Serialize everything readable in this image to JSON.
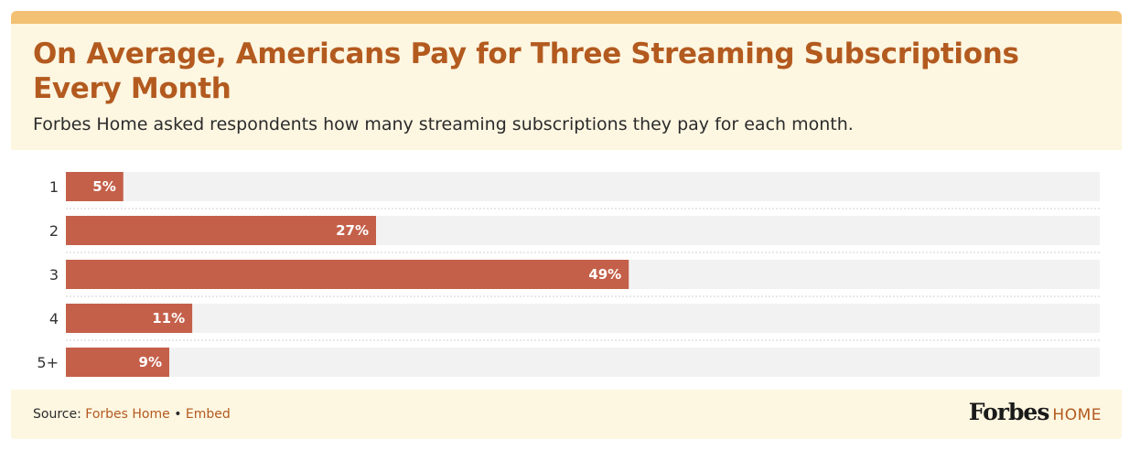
{
  "header": {
    "title": "On Average, Americans Pay for Three Streaming Subscriptions Every Month",
    "subtitle": "Forbes Home asked respondents how many streaming subscriptions they pay for each month."
  },
  "footer": {
    "source_label": "Source:",
    "source_name": "Forbes Home",
    "separator": "•",
    "embed_label": "Embed",
    "brand_name": "Forbes",
    "brand_sub": "HOME"
  },
  "colors": {
    "bar": "#c4604a",
    "track": "#f2f2f2",
    "title": "#b35a1f",
    "accent_band": "#f2c173",
    "header_bg": "#fdf6e1"
  },
  "chart_data": {
    "type": "bar",
    "orientation": "horizontal",
    "categories": [
      "1",
      "2",
      "3",
      "4",
      "5+"
    ],
    "values": [
      5,
      27,
      49,
      11,
      9
    ],
    "value_labels": [
      "5%",
      "27%",
      "49%",
      "11%",
      "9%"
    ],
    "xlim": [
      0,
      90
    ],
    "grid": false,
    "legend": "none"
  }
}
